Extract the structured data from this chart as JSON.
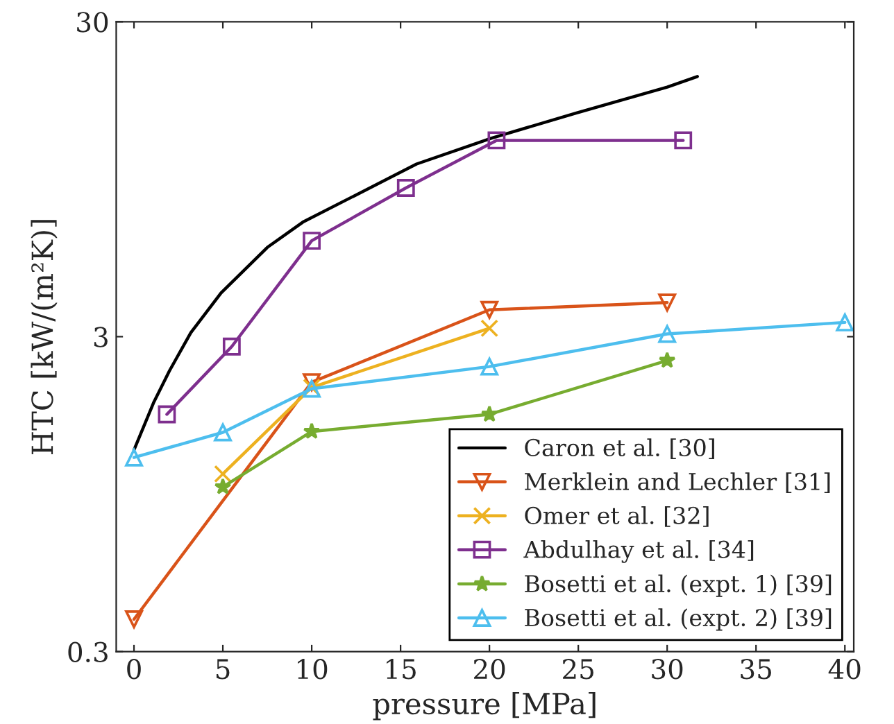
{
  "chart_data": {
    "type": "line",
    "xlabel": "pressure [MPa]",
    "ylabel": "HTC [kW/(m²K)]",
    "log": "y",
    "xlim": [
      -1,
      40.5
    ],
    "xticks": [
      0,
      5,
      10,
      15,
      20,
      25,
      30,
      35,
      40
    ],
    "ylim": [
      0.3,
      30
    ],
    "yticks": [
      0.3,
      3,
      30
    ],
    "grid": false,
    "legend": "bottom right",
    "series": [
      {
        "name": "Caron et al. [30]",
        "color": "#000000",
        "marker": "none",
        "x": [
          0,
          1.1,
          2,
          3.2,
          4.9,
          7.5,
          9.5,
          15.9,
          20.1,
          24.9,
          30,
          31.7
        ],
        "values": [
          1.31,
          1.85,
          2.34,
          3.09,
          4.13,
          5.76,
          6.93,
          10.6,
          12.8,
          15.4,
          18.6,
          20.1
        ]
      },
      {
        "name": "Merklein and Lechler [31]",
        "color": "#d95319",
        "marker": "triangle_down",
        "x": [
          0,
          10,
          20,
          30
        ],
        "values": [
          0.38,
          2.15,
          3.65,
          3.85
        ]
      },
      {
        "name": "Omer et al. [32]",
        "color": "#edb120",
        "marker": "cross",
        "x": [
          5,
          10,
          20
        ],
        "values": [
          1.1,
          2.07,
          3.19
        ]
      },
      {
        "name": "Abdulhay et al. [34]",
        "color": "#7e2f8e",
        "marker": "square",
        "x": [
          1.85,
          5.5,
          10,
          15.3,
          20.4,
          30.9
        ],
        "values": [
          1.7,
          2.79,
          6.05,
          8.9,
          12.6,
          12.6
        ]
      },
      {
        "name": "Bosetti et al. (expt. 1) [39]",
        "color": "#77ac30",
        "marker": "star",
        "x": [
          5,
          10,
          20,
          30
        ],
        "values": [
          1.0,
          1.5,
          1.7,
          2.52
        ]
      },
      {
        "name": "Bosetti et al. (expt. 2) [39]",
        "color": "#4dbeee",
        "marker": "triangle",
        "x": [
          0,
          5,
          10,
          20,
          30,
          40
        ],
        "values": [
          1.24,
          1.49,
          2.05,
          2.41,
          3.06,
          3.33
        ]
      }
    ]
  }
}
